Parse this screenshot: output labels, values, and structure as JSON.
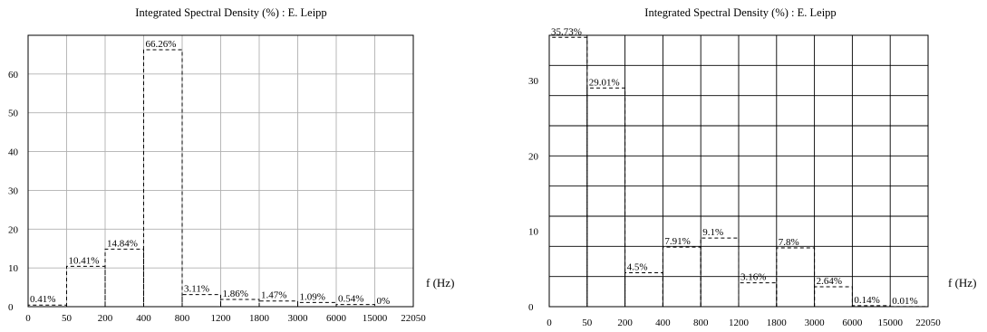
{
  "chart_data": [
    {
      "type": "bar",
      "title": "Integrated Spectral Density (%) : E. Leipp",
      "xlabel": "f (Hz)",
      "ylabel": "",
      "ylim": [
        0,
        70
      ],
      "yticks": [
        0,
        10,
        20,
        30,
        40,
        50,
        60
      ],
      "x_tick_labels": [
        "0",
        "50",
        "200",
        "400",
        "800",
        "1200",
        "1800",
        "3000",
        "6000",
        "15000",
        "22050"
      ],
      "categories": [
        "0-50",
        "50-200",
        "200-400",
        "400-800",
        "800-1200",
        "1200-1800",
        "1800-3000",
        "3000-6000",
        "6000-15000",
        "15000-22050"
      ],
      "values": [
        0.41,
        10.41,
        14.84,
        66.26,
        3.11,
        1.86,
        1.47,
        1.09,
        0.54,
        0
      ],
      "value_labels": [
        "0.41%",
        "10.41%",
        "14.84%",
        "66.26%",
        "3.11%",
        "1.86%",
        "1.47%",
        "1.09%",
        "0.54%",
        "0%"
      ],
      "grid": true,
      "grid_color": "#b0b0b0",
      "bar_style": "dashed outline"
    },
    {
      "type": "bar",
      "title": "Integrated Spectral Density (%) : E. Leipp",
      "xlabel": "f (Hz)",
      "ylabel": "",
      "ylim": [
        0,
        36
      ],
      "yticks": [
        0,
        10,
        20,
        30
      ],
      "x_tick_labels": [
        "0",
        "50",
        "200",
        "400",
        "800",
        "1200",
        "1800",
        "3000",
        "6000",
        "15000",
        "22050"
      ],
      "categories": [
        "0-50",
        "50-200",
        "200-400",
        "400-800",
        "800-1200",
        "1200-1800",
        "1800-3000",
        "3000-6000",
        "6000-15000",
        "15000-22050"
      ],
      "values": [
        35.73,
        29.01,
        4.5,
        7.91,
        9.1,
        3.16,
        7.8,
        2.64,
        0.14,
        0.01
      ],
      "value_labels": [
        "35.73%",
        "29.01%",
        "4.5%",
        "7.91%",
        "9.1%",
        "3.16%",
        "7.8%",
        "2.64%",
        "0.14%",
        "0.01%"
      ],
      "grid": true,
      "grid_color": "#000000",
      "bar_style": "dashed outline"
    }
  ]
}
